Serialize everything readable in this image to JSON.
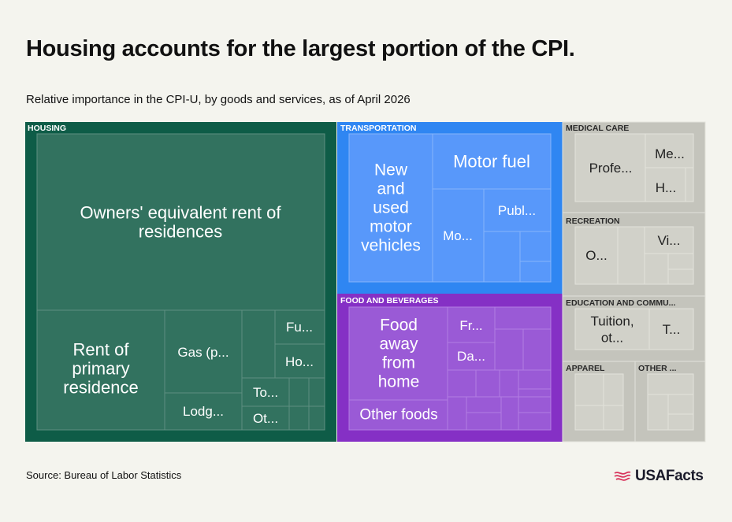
{
  "header": {
    "title": "Housing accounts for the largest portion of the CPI.",
    "subtitle": "Relative importance in the CPI-U, by goods and services, as of April 2026"
  },
  "footer": {
    "source": "Source: Bureau of Labor Statistics",
    "logo_text": "USAFacts",
    "logo_icon": "flag-swoosh-icon"
  },
  "colors": {
    "background": "#f4f4ee",
    "housing": "#0e5c47",
    "housing_tile": "#32725f",
    "transportation": "#2f86f2",
    "transportation_tile": "#5898fa",
    "food": "#8530c5",
    "food_tile": "#9a5ad6",
    "other_groups": "#c4c4bc",
    "other_tile": "#d1d1c9",
    "logo_accent": "#d8325a"
  },
  "chart_data": {
    "type": "treemap",
    "title": "Housing accounts for the largest portion of the CPI.",
    "subtitle": "Relative importance in the CPI-U, by goods and services, as of April 2026",
    "groups": [
      {
        "label": "HOUSING",
        "items": [
          {
            "label": "Owners' equivalent rent of residences"
          },
          {
            "label": "Rent of primary residence"
          },
          {
            "label": "Gas (p..."
          },
          {
            "label": "Lodg..."
          },
          {
            "label": "Fu..."
          },
          {
            "label": "Ho..."
          },
          {
            "label": "To..."
          },
          {
            "label": "Ot..."
          }
        ]
      },
      {
        "label": "TRANSPORTATION",
        "items": [
          {
            "label": "New and used motor vehicles"
          },
          {
            "label": "Motor fuel"
          },
          {
            "label": "Mo..."
          },
          {
            "label": "Publ..."
          }
        ]
      },
      {
        "label": "FOOD AND BEVERAGES",
        "items": [
          {
            "label": "Food away from home"
          },
          {
            "label": "Other foods"
          },
          {
            "label": "Fr..."
          },
          {
            "label": "Da..."
          }
        ]
      },
      {
        "label": "MEDICAL CARE",
        "items": [
          {
            "label": "Profe..."
          },
          {
            "label": "Me..."
          },
          {
            "label": "H..."
          }
        ]
      },
      {
        "label": "RECREATION",
        "items": [
          {
            "label": "O..."
          },
          {
            "label": "Vi..."
          }
        ]
      },
      {
        "label": "EDUCATION AND COMMU...",
        "items": [
          {
            "label": "Tuition, ot..."
          },
          {
            "label": "T..."
          }
        ]
      },
      {
        "label": "APPAREL",
        "items": []
      },
      {
        "label": "OTHER ...",
        "items": []
      }
    ]
  }
}
